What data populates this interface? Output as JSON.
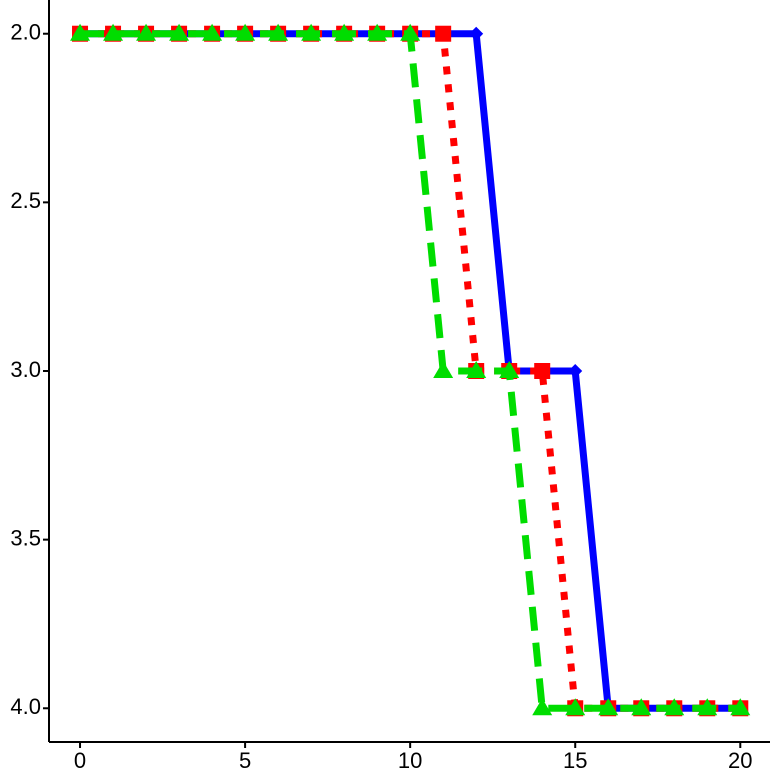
{
  "chart_data": {
    "type": "line",
    "x": [
      0,
      1,
      2,
      3,
      4,
      5,
      6,
      7,
      8,
      9,
      10,
      11,
      12,
      13,
      14,
      15,
      16,
      17,
      18,
      19,
      20
    ],
    "series": [
      {
        "color": "#0000ff",
        "style": "solid",
        "marker": "diamond",
        "values": [
          2,
          2,
          2,
          2,
          2,
          2,
          2,
          2,
          2,
          2,
          2,
          2,
          2,
          3,
          3,
          3,
          4,
          4,
          4,
          4,
          4
        ]
      },
      {
        "color": "#ff0000",
        "style": "dotted",
        "marker": "square",
        "values": [
          2,
          2,
          2,
          2,
          2,
          2,
          2,
          2,
          2,
          2,
          2,
          2,
          3,
          3,
          3,
          4,
          4,
          4,
          4,
          4,
          4
        ]
      },
      {
        "color": "#00dd00",
        "style": "dashed",
        "marker": "triangle",
        "values": [
          2,
          2,
          2,
          2,
          2,
          2,
          2,
          2,
          2,
          2,
          2,
          3,
          3,
          3,
          4,
          4,
          4,
          4,
          4,
          4,
          4
        ]
      }
    ],
    "xlim": [
      -0.94,
      20.9
    ],
    "xticks": [
      0,
      5,
      10,
      15,
      20
    ],
    "ylim": [
      4.1,
      1.9
    ],
    "yticks": [
      {
        "value": 2,
        "label": "2.0"
      },
      {
        "value": 2.5,
        "label": "2.5"
      },
      {
        "value": 3,
        "label": "3.0"
      },
      {
        "value": 3.5,
        "label": "3.5"
      },
      {
        "value": 4,
        "label": "4.0"
      }
    ]
  }
}
